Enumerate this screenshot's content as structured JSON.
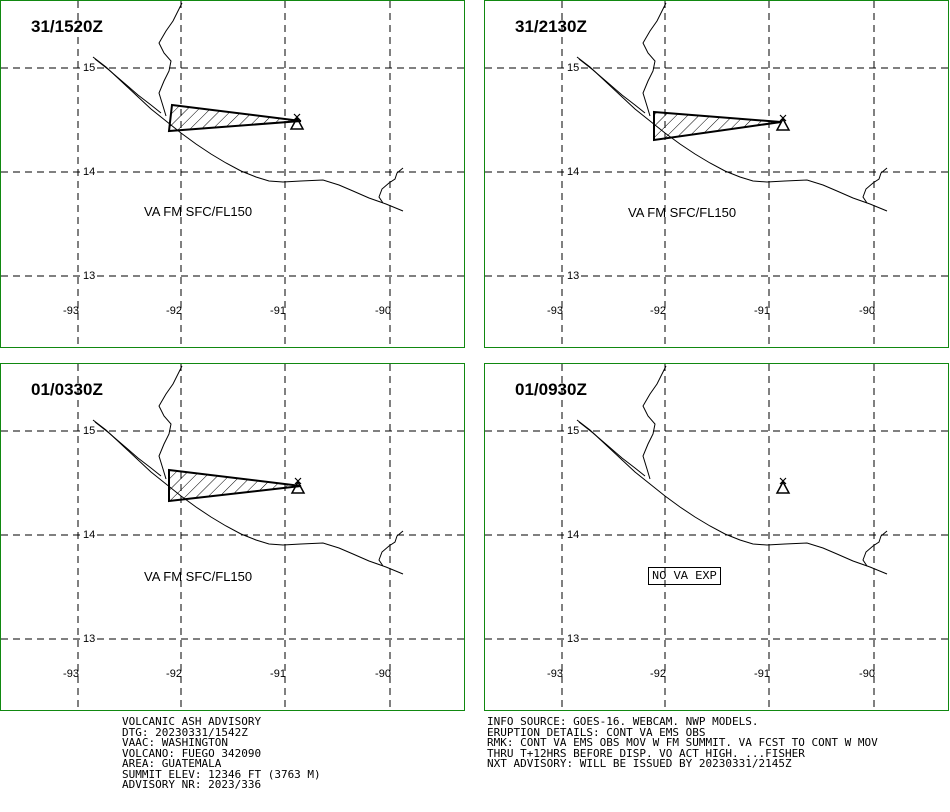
{
  "panels": [
    {
      "time": "31/1520Z",
      "va_text": "VA FM SFC/FL150",
      "no_va": false
    },
    {
      "time": "31/2130Z",
      "va_text": "VA FM SFC/FL150",
      "no_va": false
    },
    {
      "time": "01/0330Z",
      "va_text": "VA FM SFC/FL150",
      "no_va": false
    },
    {
      "time": "01/0930Z",
      "va_text": "",
      "no_va": true,
      "no_va_text": "NO VA EXP"
    }
  ],
  "grid": {
    "lat_labels": [
      "15",
      "14",
      "13"
    ],
    "lon_labels": [
      "-93",
      "-92",
      "-91",
      "-90"
    ]
  },
  "advisory": {
    "left_lines": [
      "VOLCANIC ASH ADVISORY",
      "DTG: 20230331/1542Z",
      "VAAC: WASHINGTON",
      "VOLCANO: FUEGO 342090",
      "AREA: GUATEMALA",
      "SUMMIT ELEV: 12346 FT (3763 M)",
      "ADVISORY NR: 2023/336"
    ],
    "right_lines": [
      "INFO SOURCE: GOES-16. WEBCAM. NWP MODELS.",
      "ERUPTION DETAILS: CONT VA EMS OBS",
      "RMK: CONT VA EMS OBS MOV W FM SUMMIT. VA FCST TO CONT W MOV",
      "THRU T+12HRS BEFORE DISP. VO ACT HIGH. ...FISHER",
      "NXT ADVISORY: WILL BE ISSUED BY 20230331/2145Z"
    ]
  },
  "colors": {
    "panel_border": "#118811",
    "lines": "#000000"
  }
}
